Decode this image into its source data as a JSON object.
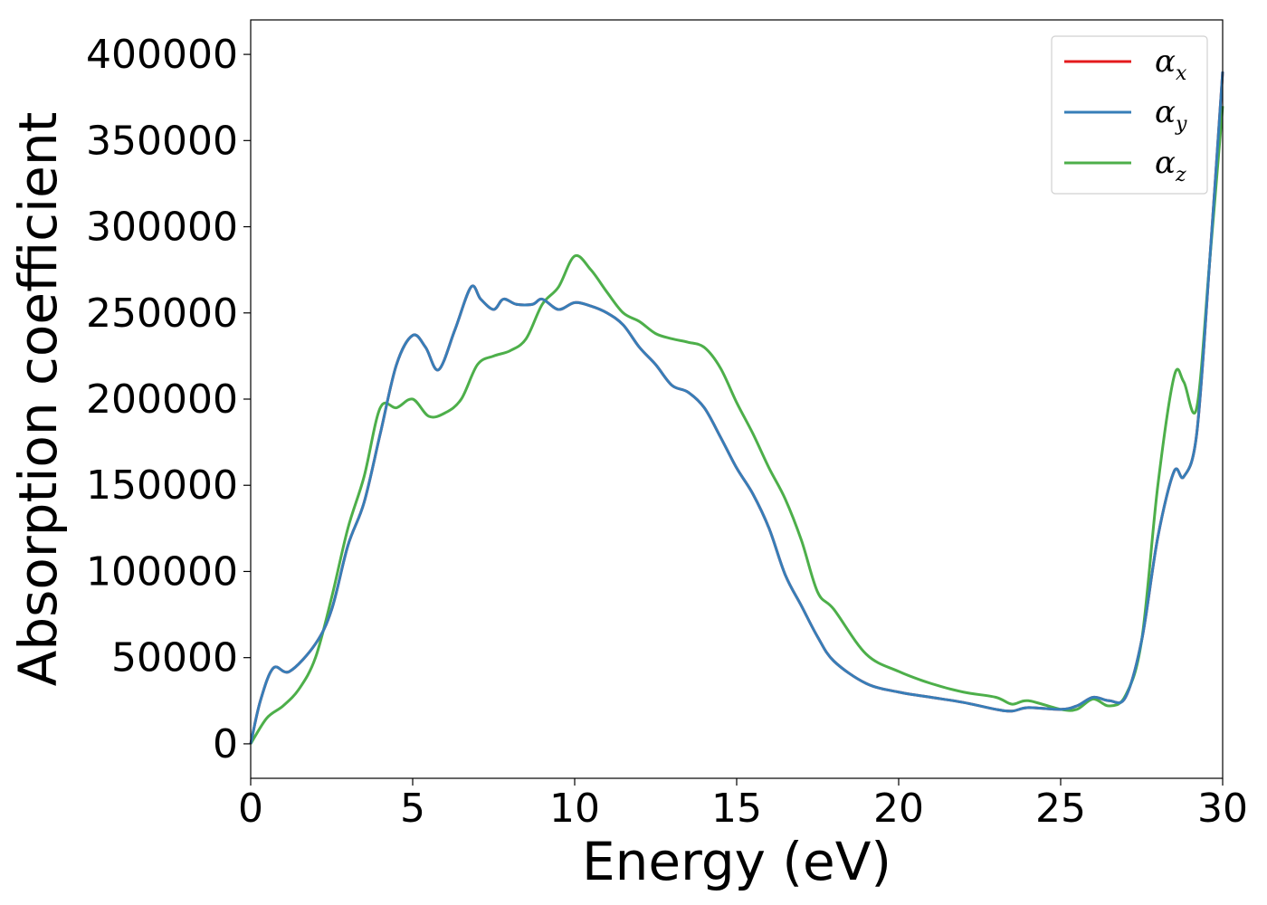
{
  "chart_data": {
    "type": "line",
    "xlabel": "Energy (eV)",
    "ylabel": "Absorption coefficient",
    "xlim": [
      0,
      30
    ],
    "ylim": [
      -20000,
      420000
    ],
    "xticks": [
      0,
      5,
      10,
      15,
      20,
      25,
      30
    ],
    "yticks": [
      0,
      50000,
      100000,
      150000,
      200000,
      250000,
      300000,
      350000,
      400000
    ],
    "grid": false,
    "legend": "top-right",
    "series": [
      {
        "name": "αx",
        "color": "#e41a1c",
        "x": [
          0,
          0.3,
          0.7,
          1.2,
          2.0,
          2.5,
          3.0,
          3.5,
          4.0,
          4.5,
          5.0,
          5.4,
          5.8,
          6.3,
          6.8,
          7.1,
          7.5,
          7.8,
          8.2,
          8.7,
          9.0,
          9.5,
          10.0,
          10.5,
          11.0,
          11.5,
          12.0,
          12.5,
          13.0,
          13.5,
          14.0,
          14.5,
          15.0,
          15.5,
          16.0,
          16.5,
          17.0,
          17.5,
          18.0,
          19.0,
          20.0,
          21.0,
          22.0,
          23.0,
          23.5,
          24.0,
          25.0,
          25.5,
          26.0,
          26.5,
          27.0,
          27.5,
          28.0,
          28.5,
          28.8,
          29.2,
          29.6,
          30.0
        ],
        "y": [
          0,
          25000,
          44000,
          42000,
          58000,
          78000,
          115000,
          140000,
          180000,
          220000,
          237000,
          230000,
          217000,
          240000,
          265000,
          258000,
          252000,
          258000,
          255000,
          255000,
          258000,
          252000,
          256000,
          254000,
          250000,
          243000,
          230000,
          220000,
          208000,
          204000,
          195000,
          178000,
          160000,
          145000,
          125000,
          98000,
          80000,
          62000,
          48000,
          35000,
          30000,
          27000,
          24000,
          20000,
          19000,
          21000,
          20000,
          22000,
          27000,
          25000,
          27000,
          60000,
          120000,
          158000,
          155000,
          180000,
          280000,
          390000
        ]
      },
      {
        "name": "αy",
        "color": "#377eb8",
        "x": [
          0,
          0.3,
          0.7,
          1.2,
          2.0,
          2.5,
          3.0,
          3.5,
          4.0,
          4.5,
          5.0,
          5.4,
          5.8,
          6.3,
          6.8,
          7.1,
          7.5,
          7.8,
          8.2,
          8.7,
          9.0,
          9.5,
          10.0,
          10.5,
          11.0,
          11.5,
          12.0,
          12.5,
          13.0,
          13.5,
          14.0,
          14.5,
          15.0,
          15.5,
          16.0,
          16.5,
          17.0,
          17.5,
          18.0,
          19.0,
          20.0,
          21.0,
          22.0,
          23.0,
          23.5,
          24.0,
          25.0,
          25.5,
          26.0,
          26.5,
          27.0,
          27.5,
          28.0,
          28.5,
          28.8,
          29.2,
          29.6,
          30.0
        ],
        "y": [
          0,
          25000,
          44000,
          42000,
          58000,
          78000,
          115000,
          140000,
          180000,
          220000,
          237000,
          230000,
          217000,
          240000,
          265000,
          258000,
          252000,
          258000,
          255000,
          255000,
          258000,
          252000,
          256000,
          254000,
          250000,
          243000,
          230000,
          220000,
          208000,
          204000,
          195000,
          178000,
          160000,
          145000,
          125000,
          98000,
          80000,
          62000,
          48000,
          35000,
          30000,
          27000,
          24000,
          20000,
          19000,
          21000,
          20000,
          22000,
          27000,
          25000,
          27000,
          60000,
          120000,
          158000,
          155000,
          180000,
          280000,
          390000
        ]
      },
      {
        "name": "αz",
        "color": "#4daf4a",
        "x": [
          0,
          0.5,
          1.0,
          1.5,
          2.0,
          2.5,
          3.0,
          3.5,
          4.0,
          4.5,
          5.0,
          5.5,
          6.0,
          6.5,
          7.0,
          7.5,
          8.0,
          8.5,
          9.0,
          9.5,
          10.0,
          10.5,
          11.0,
          11.5,
          12.0,
          12.5,
          13.0,
          13.5,
          14.0,
          14.5,
          15.0,
          15.5,
          16.0,
          16.5,
          17.0,
          17.5,
          18.0,
          19.0,
          20.0,
          21.0,
          22.0,
          23.0,
          23.5,
          24.0,
          25.0,
          25.5,
          26.0,
          26.5,
          27.0,
          27.5,
          28.0,
          28.5,
          28.8,
          29.2,
          29.6,
          30.0
        ],
        "y": [
          0,
          15000,
          22000,
          32000,
          50000,
          85000,
          125000,
          155000,
          195000,
          195000,
          200000,
          190000,
          192000,
          200000,
          220000,
          225000,
          228000,
          235000,
          255000,
          265000,
          283000,
          275000,
          262000,
          250000,
          245000,
          238000,
          235000,
          233000,
          230000,
          218000,
          198000,
          180000,
          160000,
          142000,
          118000,
          88000,
          78000,
          52000,
          42000,
          35000,
          30000,
          27000,
          23000,
          25000,
          20000,
          20000,
          26000,
          22000,
          28000,
          60000,
          150000,
          213000,
          210000,
          195000,
          280000,
          370000
        ]
      }
    ]
  }
}
